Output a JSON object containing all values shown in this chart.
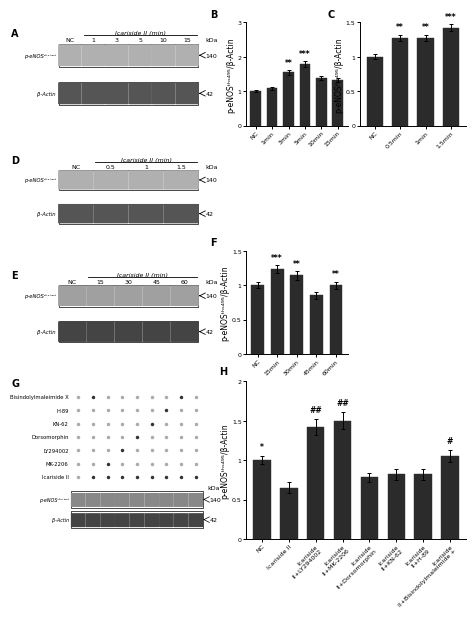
{
  "panel_B": {
    "categories": [
      "NC",
      "1min",
      "3min",
      "5min",
      "10min",
      "15min"
    ],
    "values": [
      1.0,
      1.08,
      1.55,
      1.78,
      1.38,
      1.32
    ],
    "errors": [
      0.04,
      0.05,
      0.07,
      0.09,
      0.06,
      0.06
    ],
    "significance": [
      "",
      "",
      "**",
      "***",
      "",
      ""
    ],
    "ylabel": "p-eNOSᵗʰˢ⁴⁹⁵/β-Actin",
    "ylim": [
      0,
      3
    ],
    "yticks": [
      0,
      1,
      2,
      3
    ],
    "title": "B"
  },
  "panel_C": {
    "categories": [
      "NC",
      "0.5min",
      "1min",
      "1.5min"
    ],
    "values": [
      1.0,
      1.27,
      1.27,
      1.42
    ],
    "errors": [
      0.04,
      0.05,
      0.05,
      0.05
    ],
    "significance": [
      "",
      "**",
      "**",
      "***"
    ],
    "ylabel": "p-eNOSᵗʰˢ⁴⁹⁵/β-Actin",
    "ylim": [
      0.0,
      1.5
    ],
    "yticks": [
      0.0,
      0.5,
      1.0,
      1.5
    ],
    "title": "C"
  },
  "panel_F": {
    "categories": [
      "NC",
      "15min",
      "30min",
      "45min",
      "60min"
    ],
    "values": [
      1.0,
      1.23,
      1.14,
      0.85,
      1.0
    ],
    "errors": [
      0.04,
      0.06,
      0.06,
      0.05,
      0.05
    ],
    "significance": [
      "",
      "***",
      "**",
      "",
      "**"
    ],
    "ylabel": "p-eNOSᵗʰˢ⁴⁹⁵/β-Actin",
    "ylim": [
      0.0,
      1.5
    ],
    "yticks": [
      0.0,
      0.5,
      1.0,
      1.5
    ],
    "title": "F"
  },
  "panel_H": {
    "categories": [
      "NC",
      "Icariside II",
      "Icariside\nII+LY294002",
      "Icariside\nII+MK-2206",
      "Icariside\nII+Dorsomorphin",
      "Icariside\nII+KN-62",
      "Icariside\nII+H-89",
      "Icariside\nII+Bisindolylmaleimide +"
    ],
    "values": [
      1.0,
      0.65,
      1.42,
      1.5,
      0.78,
      0.82,
      0.82,
      1.05
    ],
    "errors": [
      0.05,
      0.07,
      0.1,
      0.11,
      0.06,
      0.07,
      0.07,
      0.08
    ],
    "significance": [
      "*",
      "",
      "##",
      "##",
      "",
      "",
      "",
      "#"
    ],
    "ylabel": "p-eNOSᵗʰˢ⁴⁹⁵/β-Actin",
    "ylim": [
      0.0,
      2.0
    ],
    "yticks": [
      0.0,
      0.5,
      1.0,
      1.5,
      2.0
    ],
    "title": "H"
  },
  "bar_color": "#2b2b2b",
  "bar_width": 0.65,
  "font_size": 5.5,
  "tick_font_size": 4.5,
  "sig_font_size": 5.5,
  "blot_A": {
    "label": "A",
    "col_header": "Icariside II (min)",
    "nc_label": "NC",
    "cols": [
      "1",
      "3",
      "5",
      "10",
      "15"
    ],
    "row_labels": [
      "p-eNOSᵗʰˢ⁴⁹⁵",
      "β-Actin"
    ],
    "kda": [
      "140",
      "42"
    ],
    "band_colors": [
      "#b0b0b0",
      "#555555"
    ]
  },
  "blot_D": {
    "label": "D",
    "col_header": "Icariside II (min)",
    "nc_label": "NC",
    "cols": [
      "0.5",
      "1",
      "1.5"
    ],
    "row_labels": [
      "p-eNOSᵗʰˢ⁴⁹⁵",
      "β-Actin"
    ],
    "kda": [
      "140",
      "42"
    ],
    "band_colors": [
      "#b0b0b0",
      "#555555"
    ]
  },
  "blot_E": {
    "label": "E",
    "col_header": "Icariside II (min)",
    "nc_label": "NC",
    "cols": [
      "15",
      "30",
      "45",
      "60"
    ],
    "row_labels": [
      "p-eNOSᵗʰˢ⁴⁹⁵",
      "β-Actin"
    ],
    "kda": [
      "140",
      "42"
    ],
    "band_colors": [
      "#a0a0a0",
      "#444444"
    ]
  },
  "blot_G": {
    "label": "G",
    "inhibitors": [
      "Bisindolylmaleimide X",
      "H-89",
      "KN-62",
      "Dorsomorphin",
      "LY294002",
      "MK-2206",
      "Icariside II"
    ],
    "n_lanes": 9,
    "row_labels": [
      "p-eNOSᵗʰˢ⁴⁹⁵",
      "β-Actin"
    ],
    "kda": [
      "140",
      "42"
    ]
  }
}
